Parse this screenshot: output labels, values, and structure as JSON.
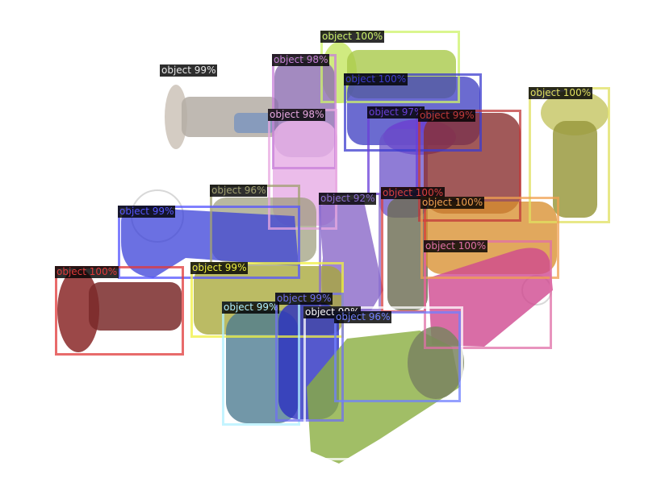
{
  "scene": {
    "background": "#ffffff",
    "subject": "pile of screws with instance segmentation masks"
  },
  "detections": [
    {
      "label": "object 100%",
      "color": "#cdf36a"
    },
    {
      "label": "object 98%",
      "color": "#c77fd8"
    },
    {
      "label": "object 99%",
      "color": "#e8e8e8"
    },
    {
      "label": "object 100%",
      "color": "#3c3ccf"
    },
    {
      "label": "object 98%",
      "color": "#e8a8e0"
    },
    {
      "label": "object 97%",
      "color": "#6a3fd8"
    },
    {
      "label": "object 99%",
      "color": "#c03a3a"
    },
    {
      "label": "object 100%",
      "color": "#e0e060"
    },
    {
      "label": "object 96%",
      "color": "#a0a070"
    },
    {
      "label": "object 92%",
      "color": "#8a6ccf"
    },
    {
      "label": "object 100%",
      "color": "#d84040"
    },
    {
      "label": "object 100%",
      "color": "#f0a050"
    },
    {
      "label": "object 99%",
      "color": "#5555ff"
    },
    {
      "label": "object 100%",
      "color": "#e070a8"
    },
    {
      "label": "object 100%",
      "color": "#e03a3a"
    },
    {
      "label": "object 99%",
      "color": "#f0f040"
    },
    {
      "label": "object 99%",
      "color": "#b0f0ff"
    },
    {
      "label": "object 99%",
      "color": "#7070f0"
    },
    {
      "label": "object 99%",
      "color": "#ffffff"
    },
    {
      "label": "object 96%",
      "color": "#7080ff"
    }
  ]
}
